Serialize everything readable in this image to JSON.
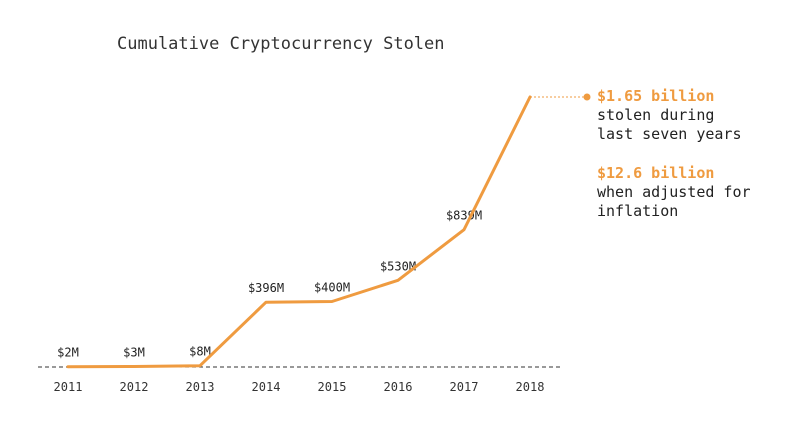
{
  "colors": {
    "accent": "#ef9b40",
    "text": "#222222",
    "axis": "#333333"
  },
  "chart_data": {
    "type": "line",
    "title": "Cumulative Cryptocurrency Stolen",
    "xlabel": "",
    "ylabel": "",
    "categories": [
      "2011",
      "2012",
      "2013",
      "2014",
      "2015",
      "2016",
      "2017",
      "2018"
    ],
    "series": [
      {
        "values": [
          2,
          3,
          8,
          396,
          400,
          530,
          839,
          1650
        ]
      }
    ],
    "data_labels": [
      "$2M",
      "$3M",
      "$8M",
      "$396M",
      "$400M",
      "$530M",
      "$839M",
      ""
    ],
    "ylim": [
      0,
      1650
    ],
    "grid": false,
    "legend": "none",
    "annotations": {
      "amount": "$1.65 billion",
      "amount_text": [
        "stolen during",
        "last seven years"
      ],
      "adjusted": "$12.6 billion",
      "adjusted_text": [
        "when adjusted for",
        "inflation"
      ]
    }
  }
}
